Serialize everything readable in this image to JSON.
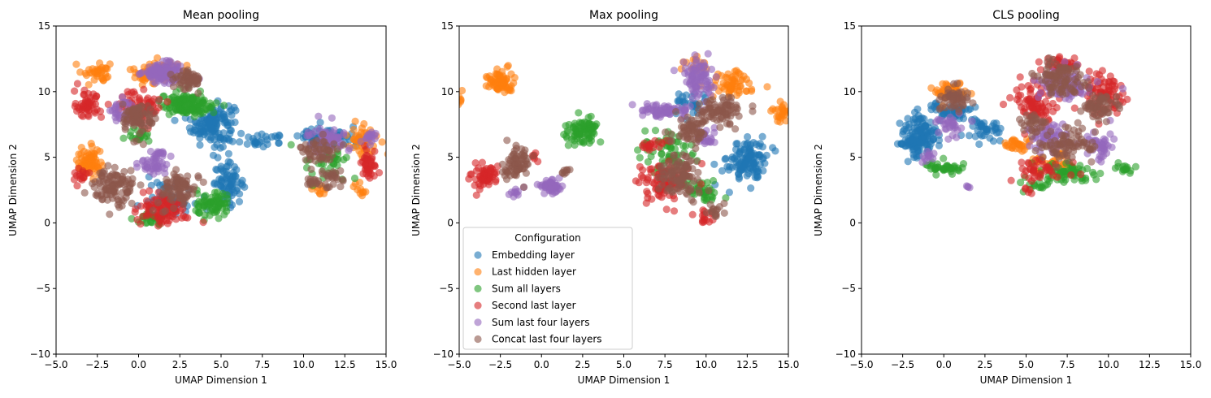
{
  "chart_data": [
    {
      "type": "scatter",
      "title": "Mean pooling",
      "xlabel": "UMAP Dimension 1",
      "ylabel": "UMAP Dimension 2",
      "xlim": [
        -5,
        15
      ],
      "ylim": [
        -10,
        15
      ],
      "xticks": [
        "−5.0",
        "−2.5",
        "0.0",
        "2.5",
        "5.0",
        "7.5",
        "10.0",
        "12.5",
        "15.0"
      ],
      "yticks": [
        "−10",
        "−5",
        "0",
        "5",
        "10",
        "15"
      ],
      "series": [
        {
          "name": "Embedding layer",
          "color": "#1f77b4",
          "clusters": [
            [
              4.5,
              7.5,
              1.2,
              1.5,
              140
            ],
            [
              5.5,
              3.0,
              0.8,
              1.3,
              70
            ],
            [
              7.5,
              6.3,
              1.5,
              0.4,
              25
            ],
            [
              11.5,
              6.5,
              1.6,
              0.7,
              70
            ],
            [
              2.0,
              2.0,
              1.3,
              1.0,
              50
            ]
          ]
        },
        {
          "name": "Last hidden layer",
          "color": "#ff7f0e",
          "clusters": [
            [
              -3.0,
              4.5,
              0.7,
              1.1,
              70
            ],
            [
              1.0,
              11.5,
              1.3,
              0.8,
              70
            ],
            [
              -2.5,
              11.5,
              0.8,
              0.8,
              35
            ],
            [
              13.5,
              6.5,
              1.0,
              1.1,
              45
            ],
            [
              11.0,
              2.5,
              0.5,
              0.5,
              10
            ],
            [
              13.5,
              2.5,
              0.4,
              0.5,
              10
            ]
          ]
        },
        {
          "name": "Sum all layers",
          "color": "#2ca02c",
          "clusters": [
            [
              3.0,
              9.0,
              1.5,
              0.8,
              130
            ],
            [
              4.5,
              1.3,
              1.0,
              1.0,
              70
            ],
            [
              0.8,
              0.4,
              0.7,
              0.5,
              30
            ],
            [
              11.5,
              4.5,
              1.3,
              1.0,
              35
            ],
            [
              0.0,
              6.5,
              0.6,
              0.6,
              20
            ]
          ]
        },
        {
          "name": "Second last layer",
          "color": "#d62728",
          "clusters": [
            [
              -3.0,
              9.0,
              0.8,
              1.0,
              50
            ],
            [
              1.5,
              1.0,
              1.3,
              1.0,
              100
            ],
            [
              0.0,
              9.0,
              1.3,
              1.2,
              70
            ],
            [
              14.0,
              4.5,
              0.5,
              1.3,
              40
            ],
            [
              -3.5,
              3.5,
              0.5,
              0.6,
              15
            ]
          ]
        },
        {
          "name": "Sum last four layers",
          "color": "#9467bd",
          "clusters": [
            [
              1.5,
              11.5,
              1.1,
              0.7,
              110
            ],
            [
              1.0,
              4.5,
              0.8,
              0.8,
              50
            ],
            [
              11.5,
              6.5,
              1.0,
              0.9,
              60
            ],
            [
              14.0,
              6.5,
              0.5,
              0.4,
              15
            ],
            [
              -1.0,
              8.5,
              0.8,
              0.8,
              30
            ]
          ]
        },
        {
          "name": "Concat last four layers",
          "color": "#8c564b",
          "clusters": [
            [
              -1.5,
              2.8,
              1.2,
              1.2,
              100
            ],
            [
              2.5,
              2.5,
              1.0,
              1.2,
              80
            ],
            [
              0.0,
              8.0,
              0.9,
              1.2,
              80
            ],
            [
              3.0,
              11.0,
              0.8,
              0.7,
              60
            ],
            [
              11.0,
              5.5,
              1.0,
              0.8,
              50
            ],
            [
              11.5,
              3.5,
              0.8,
              0.6,
              30
            ],
            [
              10.5,
              3.0,
              0.3,
              0.5,
              10
            ]
          ]
        }
      ]
    },
    {
      "type": "scatter",
      "title": "Max pooling",
      "xlabel": "UMAP Dimension 1",
      "ylabel": "UMAP Dimension 2",
      "xlim": [
        -5,
        15
      ],
      "ylim": [
        -10,
        15
      ],
      "xticks": [
        "−5.0",
        "−2.5",
        "0.0",
        "2.5",
        "5.0",
        "7.5",
        "10.0",
        "12.5",
        "15.0"
      ],
      "yticks": [
        "−10",
        "−5",
        "0",
        "5",
        "10",
        "15"
      ],
      "series": [
        {
          "name": "Embedding layer",
          "color": "#1f77b4",
          "clusters": [
            [
              12.5,
              4.8,
              1.1,
              1.5,
              120
            ],
            [
              9.0,
              9.0,
              1.0,
              1.0,
              30
            ]
          ]
        },
        {
          "name": "Last hidden layer",
          "color": "#ff7f0e",
          "clusters": [
            [
              -2.5,
              10.8,
              0.7,
              0.8,
              70
            ],
            [
              11.5,
              10.5,
              1.5,
              1.0,
              60
            ],
            [
              14.5,
              8.5,
              0.5,
              0.8,
              25
            ],
            [
              -5.0,
              9.5,
              0.3,
              0.7,
              10
            ],
            [
              9.5,
              12.0,
              0.6,
              0.5,
              20
            ]
          ]
        },
        {
          "name": "Sum all layers",
          "color": "#2ca02c",
          "clusters": [
            [
              2.5,
              7.0,
              1.0,
              0.8,
              80
            ],
            [
              7.5,
              5.5,
              1.5,
              1.5,
              60
            ],
            [
              9.5,
              2.5,
              1.2,
              0.8,
              40
            ]
          ]
        },
        {
          "name": "Second last layer",
          "color": "#d62728",
          "clusters": [
            [
              -3.5,
              3.5,
              0.7,
              0.8,
              60
            ],
            [
              7.5,
              3.0,
              1.5,
              1.3,
              90
            ],
            [
              6.5,
              6.0,
              0.8,
              0.4,
              20
            ],
            [
              10.0,
              0.5,
              0.6,
              0.5,
              15
            ],
            [
              -0.5,
              5.0,
              0.3,
              0.3,
              6
            ]
          ]
        },
        {
          "name": "Sum last four layers",
          "color": "#9467bd",
          "clusters": [
            [
              0.5,
              2.8,
              0.6,
              0.5,
              50
            ],
            [
              9.5,
              11.0,
              0.8,
              1.2,
              80
            ],
            [
              7.5,
              8.5,
              1.5,
              0.6,
              60
            ],
            [
              10.0,
              6.5,
              0.6,
              0.6,
              25
            ],
            [
              -1.5,
              2.3,
              0.4,
              0.3,
              10
            ]
          ]
        },
        {
          "name": "Concat last four layers",
          "color": "#8c564b",
          "clusters": [
            [
              -1.5,
              4.5,
              0.8,
              1.2,
              70
            ],
            [
              8.5,
              3.5,
              1.3,
              1.5,
              100
            ],
            [
              11.0,
              8.5,
              1.2,
              1.0,
              80
            ],
            [
              9.0,
              7.0,
              1.0,
              1.0,
              60
            ],
            [
              10.5,
              1.0,
              0.5,
              0.6,
              15
            ],
            [
              1.5,
              4.0,
              0.3,
              0.3,
              8
            ]
          ]
        }
      ]
    },
    {
      "type": "scatter",
      "title": "CLS pooling",
      "xlabel": "UMAP Dimension 1",
      "ylabel": "UMAP Dimension 2",
      "xlim": [
        -5,
        15
      ],
      "ylim": [
        -10,
        15
      ],
      "xticks": [
        "−5.0",
        "−2.5",
        "0.0",
        "2.5",
        "5.0",
        "7.5",
        "10.0",
        "12.5",
        "15.0"
      ],
      "yticks": [
        "−10",
        "−5",
        "0",
        "5",
        "10",
        "15"
      ],
      "series": [
        {
          "name": "Embedding layer",
          "color": "#1f77b4",
          "clusters": [
            [
              -1.5,
              6.5,
              1.0,
              1.5,
              150
            ],
            [
              0.5,
              8.5,
              1.3,
              0.6,
              50
            ],
            [
              2.5,
              7.0,
              1.0,
              0.8,
              40
            ]
          ]
        },
        {
          "name": "Last hidden layer",
          "color": "#ff7f0e",
          "clusters": [
            [
              0.5,
              10.0,
              1.0,
              0.6,
              50
            ],
            [
              4.5,
              6.0,
              0.6,
              0.6,
              30
            ],
            [
              6.5,
              4.5,
              1.5,
              0.8,
              40
            ]
          ]
        },
        {
          "name": "Sum all layers",
          "color": "#2ca02c",
          "clusters": [
            [
              0.0,
              4.2,
              1.0,
              0.4,
              40
            ],
            [
              7.5,
              3.8,
              1.8,
              0.7,
              60
            ],
            [
              11.0,
              4.2,
              0.6,
              0.4,
              15
            ],
            [
              5.5,
              2.8,
              0.8,
              0.4,
              15
            ]
          ]
        },
        {
          "name": "Second last layer",
          "color": "#d62728",
          "clusters": [
            [
              5.5,
              9.0,
              1.2,
              1.5,
              80
            ],
            [
              9.5,
              10.0,
              1.2,
              1.3,
              80
            ],
            [
              7.0,
              12.0,
              1.0,
              0.5,
              40
            ],
            [
              6.0,
              4.0,
              1.5,
              0.8,
              40
            ],
            [
              5.0,
              2.5,
              0.3,
              0.3,
              5
            ]
          ]
        },
        {
          "name": "Sum last four layers",
          "color": "#9467bd",
          "clusters": [
            [
              7.5,
              10.5,
              1.5,
              1.2,
              90
            ],
            [
              6.5,
              6.5,
              1.2,
              1.0,
              60
            ],
            [
              9.5,
              6.0,
              0.8,
              1.0,
              40
            ],
            [
              0.5,
              7.5,
              0.8,
              0.8,
              30
            ],
            [
              -1.0,
              5.0,
              0.5,
              0.4,
              12
            ],
            [
              1.5,
              2.8,
              0.2,
              0.2,
              4
            ]
          ]
        },
        {
          "name": "Concat last four layers",
          "color": "#8c564b",
          "clusters": [
            [
              0.5,
              9.5,
              0.8,
              0.8,
              50
            ],
            [
              7.0,
              11.0,
              1.3,
              1.2,
              90
            ],
            [
              9.5,
              9.0,
              1.0,
              1.0,
              60
            ],
            [
              7.5,
              6.0,
              1.5,
              1.2,
              80
            ],
            [
              5.5,
              7.5,
              0.8,
              0.8,
              30
            ]
          ]
        }
      ]
    }
  ],
  "legend": {
    "title": "Configuration",
    "location": "lower-left of Max pooling panel",
    "entries": [
      "Embedding layer",
      "Last hidden layer",
      "Sum all layers",
      "Second last layer",
      "Sum last four layers",
      "Concat last four layers"
    ],
    "colors": [
      "#1f77b4",
      "#ff7f0e",
      "#2ca02c",
      "#d62728",
      "#9467bd",
      "#8c564b"
    ]
  }
}
